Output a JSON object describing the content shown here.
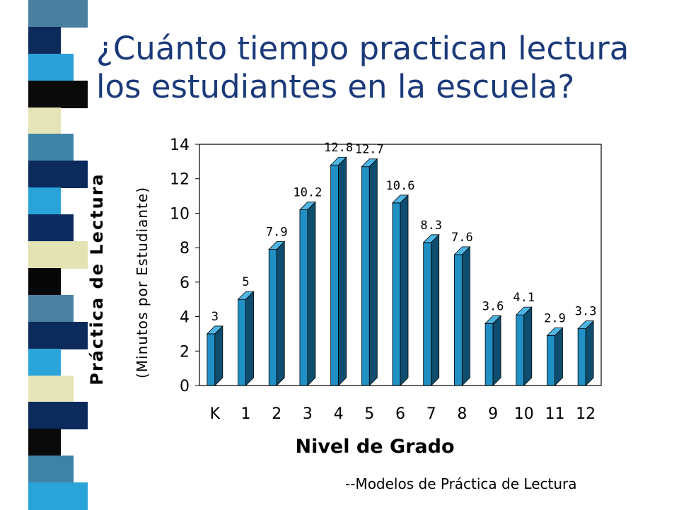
{
  "slide": {
    "title": "¿Cuánto tiempo practican lectura los estudiantes en la escuela?",
    "source": "--Modelos de Práctica de Lectura",
    "strip_colors": [
      "#4a7fa0",
      "#0c2a5c",
      "#2a9fd8",
      "#0a0a0a",
      "#e5e4b8",
      "#3f84a8",
      "#0c2a5c",
      "#29a3d8",
      "#0d2b5e",
      "#e4e3b4",
      "#070707",
      "#4b80a0",
      "#0c2a5c",
      "#2ba4da",
      "#e6e5ba",
      "#0c2a5c",
      "#0a0a0a",
      "#3e82a6",
      "#2aa3d8"
    ]
  },
  "chart_data": {
    "type": "bar",
    "categories": [
      "K",
      "1",
      "2",
      "3",
      "4",
      "5",
      "6",
      "7",
      "8",
      "9",
      "10",
      "11",
      "12"
    ],
    "values": [
      3,
      5,
      7.9,
      10.2,
      12.8,
      12.7,
      10.6,
      8.3,
      7.6,
      3.6,
      4.1,
      2.9,
      3.3
    ],
    "value_labels": [
      "3",
      "5",
      "7.9",
      "10.2",
      "12.8",
      "12.7",
      "10.6",
      "8.3",
      "7.6",
      "3.6",
      "4.1",
      "2.9",
      "3.3"
    ],
    "xlabel": "Nivel de Grado",
    "ylabel": "Práctica de Lectura",
    "ylabel_sub": "(Minutos por Estudiante)",
    "ylim": [
      0,
      14
    ],
    "yticks": [
      "0",
      "2",
      "4",
      "6",
      "8",
      "10",
      "12",
      "14"
    ],
    "grid": false,
    "legend": "none",
    "colors": {
      "bar_front": "#1f8fc4",
      "bar_side": "#0e4d6e",
      "bar_top": "#4fb5e3"
    }
  }
}
